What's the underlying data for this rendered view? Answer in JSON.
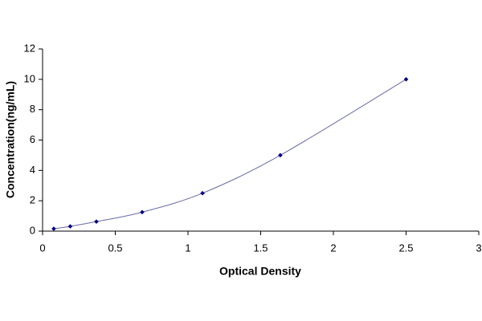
{
  "chart_data": {
    "type": "scatter",
    "x": [
      0.077,
      0.19,
      0.37,
      0.685,
      1.1,
      1.635,
      2.5
    ],
    "values": [
      0.156,
      0.313,
      0.625,
      1.25,
      2.5,
      5,
      10
    ],
    "color": "#000080",
    "line_color": "#6a6aaa",
    "xlabel": "Optical Density",
    "ylabel": "Concentration(ng/mL)",
    "xlim": [
      0,
      3
    ],
    "xticks": [
      0,
      0.5,
      1,
      1.5,
      2,
      2.5,
      3
    ],
    "ylim": [
      0,
      12
    ],
    "yticks": [
      0,
      2,
      4,
      6,
      8,
      10,
      12
    ],
    "grid": false
  }
}
